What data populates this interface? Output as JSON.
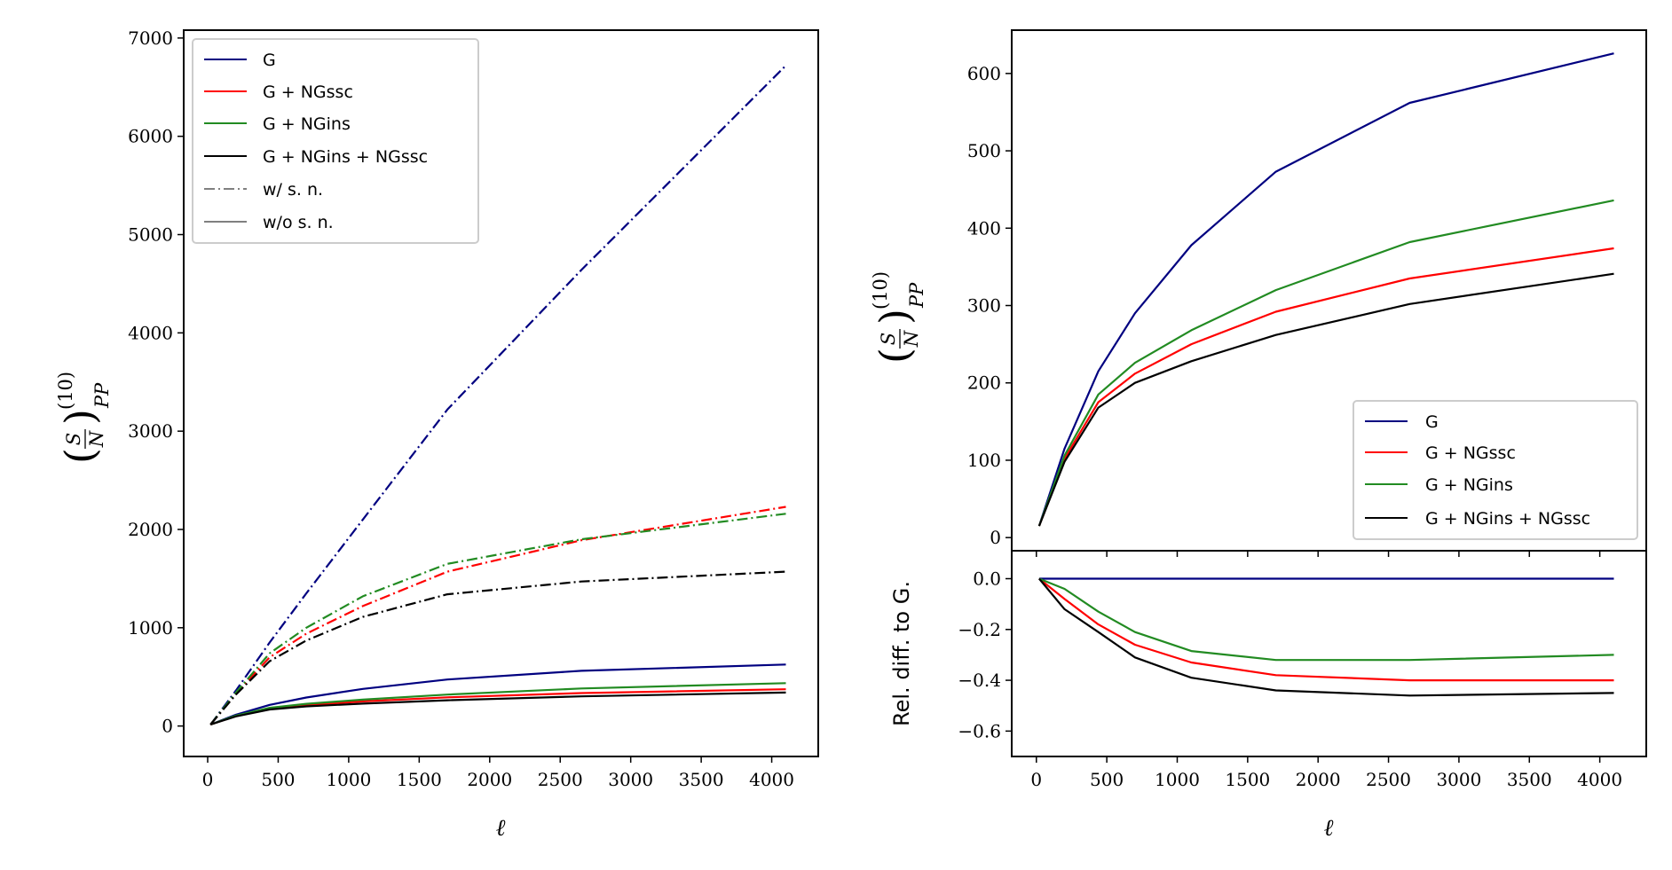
{
  "chart_data": [
    {
      "type": "line",
      "panel": "left",
      "xlabel": "ℓ",
      "ylabel": "(S/N)^(10)_PP",
      "ylabel_parts": {
        "num": "S",
        "den": "N",
        "sup": "(10)",
        "sub": "PP"
      },
      "xlim": [
        -170,
        4330
      ],
      "ylim": [
        -310,
        7080
      ],
      "xticks": [
        0,
        500,
        1000,
        1500,
        2000,
        2500,
        3000,
        3500,
        4000
      ],
      "yticks": [
        0,
        1000,
        2000,
        3000,
        4000,
        5000,
        6000,
        7000
      ],
      "x": [
        20,
        200,
        440,
        700,
        1100,
        1700,
        2650,
        4100
      ],
      "series": [
        {
          "name": "G",
          "style": "solid",
          "color": "#000080",
          "values": [
            15,
            115,
            215,
            290,
            378,
            473,
            562,
            626
          ]
        },
        {
          "name": "G + NGssc",
          "style": "solid",
          "color": "#ff0000",
          "values": [
            15,
            102,
            175,
            212,
            250,
            292,
            335,
            374
          ]
        },
        {
          "name": "G + NGins",
          "style": "solid",
          "color": "#228b22",
          "values": [
            15,
            106,
            185,
            226,
            268,
            320,
            382,
            436
          ]
        },
        {
          "name": "G + NGins + NGssc",
          "style": "solid",
          "color": "#000000",
          "values": [
            15,
            98,
            168,
            200,
            228,
            262,
            302,
            341
          ]
        },
        {
          "name": "G",
          "style": "dashdot",
          "color": "#000080",
          "values": [
            15,
            360,
            850,
            1350,
            2100,
            3220,
            4640,
            6720
          ]
        },
        {
          "name": "G + NGssc",
          "style": "dashdot",
          "color": "#ff0000",
          "values": [
            15,
            330,
            700,
            940,
            1220,
            1570,
            1890,
            2230
          ]
        },
        {
          "name": "G + NGins",
          "style": "dashdot",
          "color": "#228b22",
          "values": [
            15,
            340,
            740,
            1000,
            1320,
            1650,
            1900,
            2160
          ]
        },
        {
          "name": "G + NGins + NGssc",
          "style": "dashdot",
          "color": "#000000",
          "values": [
            15,
            320,
            660,
            870,
            1110,
            1340,
            1470,
            1570
          ]
        }
      ],
      "legend": {
        "position": "upper-left",
        "entries": [
          {
            "label": "G",
            "color": "#000080",
            "style": "solid"
          },
          {
            "label": "G + NGssc",
            "color": "#ff0000",
            "style": "solid"
          },
          {
            "label": "G + NGins",
            "color": "#228b22",
            "style": "solid"
          },
          {
            "label": "G + NGins + NGssc",
            "color": "#000000",
            "style": "solid"
          },
          {
            "label": "w/  s. n.",
            "color": "#808080",
            "style": "dashdot"
          },
          {
            "label": "w/o s. n.",
            "color": "#808080",
            "style": "solid"
          }
        ]
      }
    },
    {
      "type": "line",
      "panel": "right-top",
      "xlabel": "",
      "ylabel": "(S/N)^(10)_PP",
      "ylabel_parts": {
        "num": "S",
        "den": "N",
        "sup": "(10)",
        "sub": "PP"
      },
      "xlim": [
        -175,
        4330
      ],
      "ylim": [
        -17,
        656
      ],
      "yticks": [
        0,
        100,
        200,
        300,
        400,
        500,
        600
      ],
      "x": [
        20,
        200,
        440,
        700,
        1100,
        1700,
        2650,
        4100
      ],
      "series": [
        {
          "name": "G",
          "color": "#000080",
          "values": [
            15,
            115,
            215,
            290,
            378,
            473,
            562,
            626
          ]
        },
        {
          "name": "G + NGssc",
          "color": "#ff0000",
          "values": [
            15,
            102,
            175,
            212,
            250,
            292,
            335,
            374
          ]
        },
        {
          "name": "G + NGins",
          "color": "#228b22",
          "values": [
            15,
            106,
            185,
            226,
            268,
            320,
            382,
            436
          ]
        },
        {
          "name": "G + NGins + NGssc",
          "color": "#000000",
          "values": [
            15,
            98,
            168,
            200,
            228,
            262,
            302,
            341
          ]
        }
      ],
      "legend": {
        "position": "lower-right",
        "entries": [
          {
            "label": "G",
            "color": "#000080",
            "style": "solid"
          },
          {
            "label": "G + NGssc",
            "color": "#ff0000",
            "style": "solid"
          },
          {
            "label": "G + NGins",
            "color": "#228b22",
            "style": "solid"
          },
          {
            "label": "G + NGins + NGssc",
            "color": "#000000",
            "style": "solid"
          }
        ]
      }
    },
    {
      "type": "line",
      "panel": "right-bottom",
      "xlabel": "ℓ",
      "ylabel": "Rel.  diff.  to G.",
      "xlim": [
        -175,
        4330
      ],
      "ylim": [
        -0.7,
        0.11
      ],
      "xticks": [
        0,
        500,
        1000,
        1500,
        2000,
        2500,
        3000,
        3500,
        4000
      ],
      "yticks": [
        0.0,
        -0.2,
        -0.4,
        -0.6
      ],
      "ytick_labels": [
        "0.0",
        "−0.2",
        "−0.4",
        "−0.6"
      ],
      "x": [
        20,
        200,
        440,
        700,
        1100,
        1700,
        2650,
        4100
      ],
      "series": [
        {
          "name": "G",
          "color": "#000080",
          "values": [
            0,
            0,
            0,
            0,
            0,
            0,
            0,
            0
          ]
        },
        {
          "name": "G + NGssc",
          "color": "#ff0000",
          "values": [
            0,
            -0.08,
            -0.18,
            -0.26,
            -0.33,
            -0.38,
            -0.4,
            -0.4
          ]
        },
        {
          "name": "G + NGins",
          "color": "#228b22",
          "values": [
            0,
            -0.04,
            -0.13,
            -0.21,
            -0.285,
            -0.32,
            -0.32,
            -0.3
          ]
        },
        {
          "name": "G + NGins + NGssc",
          "color": "#000000",
          "values": [
            0,
            -0.12,
            -0.21,
            -0.31,
            -0.39,
            -0.44,
            -0.46,
            -0.45
          ]
        }
      ]
    }
  ]
}
